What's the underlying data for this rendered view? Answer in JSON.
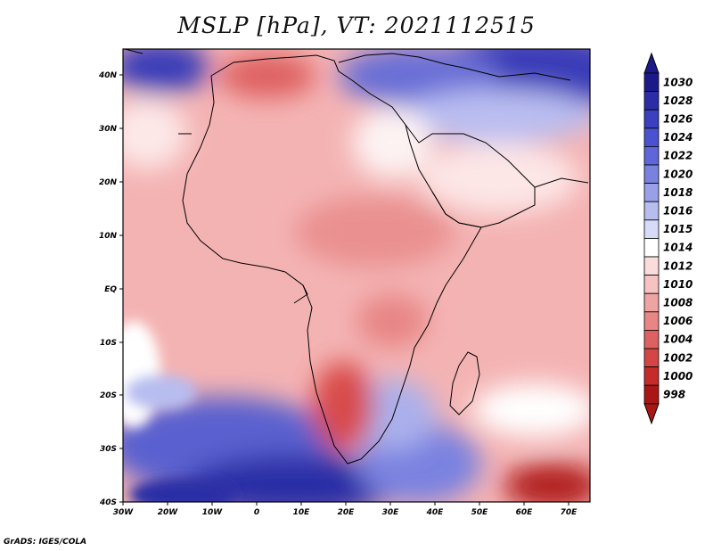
{
  "title": "MSLP [hPa], VT: 2021112515",
  "credit": "GrADS: IGES/COLA",
  "lon_labels": [
    "30W",
    "20W",
    "10W",
    "0",
    "10E",
    "20E",
    "30E",
    "40E",
    "50E",
    "60E",
    "70E"
  ],
  "lat_labels": [
    "40N",
    "30N",
    "20N",
    "10N",
    "EQ",
    "10S",
    "20S",
    "30S",
    "40S"
  ],
  "colorbar": {
    "labels": [
      "1030",
      "1028",
      "1026",
      "1024",
      "1022",
      "1020",
      "1018",
      "1016",
      "1015",
      "1014",
      "1012",
      "1010",
      "1008",
      "1006",
      "1004",
      "1002",
      "1000",
      "998"
    ],
    "colors": [
      "#1c1a8a",
      "#2c2da6",
      "#3b3fc0",
      "#4b52d0",
      "#5f67d8",
      "#7a82e0",
      "#9aa0e8",
      "#b8bdf0",
      "#d8dbf7",
      "#ffffff",
      "#fbdcdc",
      "#f6c2c2",
      "#efa4a4",
      "#e88585",
      "#de6161",
      "#d44545",
      "#c52b2b",
      "#a81616"
    ]
  },
  "map": {
    "region": "Africa",
    "field": "mean sea level pressure"
  }
}
